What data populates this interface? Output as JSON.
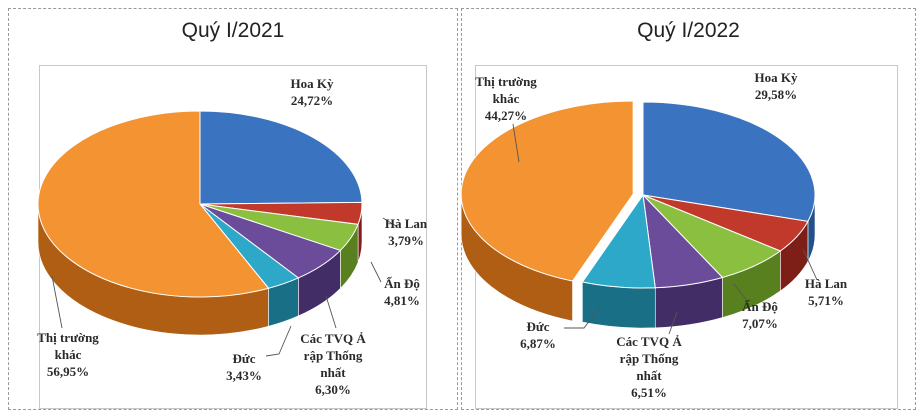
{
  "chart_data": [
    {
      "type": "pie",
      "title": "Quý I/2021",
      "unit": "%",
      "series": [
        {
          "label": "Hoa Kỳ",
          "value_label": "24,72%",
          "value": 24.72,
          "color": "#3a73bf",
          "dark": "#24508a"
        },
        {
          "label": "Hà Lan",
          "value_label": "3,79%",
          "value": 3.79,
          "color": "#c0392b",
          "dark": "#7d1f17"
        },
        {
          "label": "Ấn Độ",
          "value_label": "4,81%",
          "value": 4.81,
          "color": "#8bbf3f",
          "dark": "#58801f"
        },
        {
          "label": "Các TVQ Ả rập Thống nhất",
          "value_label": "6,30%",
          "value": 6.3,
          "color": "#6b4c9a",
          "dark": "#432d66"
        },
        {
          "label": "Đức",
          "value_label": "3,43%",
          "value": 3.43,
          "color": "#2ea8c8",
          "dark": "#186f86"
        },
        {
          "label": "Thị trường khác",
          "value_label": "56,95%",
          "value": 56.95,
          "color": "#f39332",
          "dark": "#b05e14"
        }
      ]
    },
    {
      "type": "pie",
      "title": "Quý I/2022",
      "unit": "%",
      "series": [
        {
          "label": "Hoa Kỳ",
          "value_label": "29,58%",
          "value": 29.58,
          "color": "#3a73bf",
          "dark": "#24508a"
        },
        {
          "label": "Hà Lan",
          "value_label": "5,71%",
          "value": 5.71,
          "color": "#c0392b",
          "dark": "#7d1f17"
        },
        {
          "label": "Ấn Độ",
          "value_label": "7,07%",
          "value": 7.07,
          "color": "#8bbf3f",
          "dark": "#58801f"
        },
        {
          "label": "Các TVQ Ả rập Thống nhất",
          "value_label": "6,51%",
          "value": 6.51,
          "color": "#6b4c9a",
          "dark": "#432d66"
        },
        {
          "label": "Đức",
          "value_label": "6,87%",
          "value": 6.87,
          "color": "#2ea8c8",
          "dark": "#186f86"
        },
        {
          "label": "Thị trường khác",
          "value_label": "44,27%",
          "value": 44.27,
          "color": "#f39332",
          "dark": "#b05e14"
        }
      ]
    }
  ]
}
